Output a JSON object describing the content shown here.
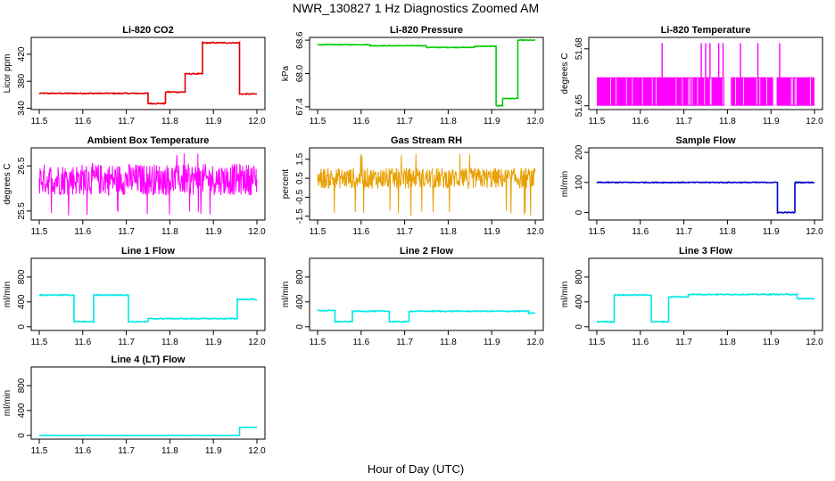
{
  "figure": {
    "title": "NWR_130827  1 Hz Diagnostics Zoomed AM",
    "xlabel": "Hour of Day (UTC)"
  },
  "chart_data": [
    {
      "type": "line",
      "title": "Li-820 CO2",
      "ylabel": "Licor ppm",
      "color": "#dd0000",
      "xlim": [
        11.5,
        12.0
      ],
      "ylim": [
        338,
        445
      ],
      "yticks": [
        340,
        380,
        420
      ],
      "ytick_labels": [
        "340",
        "380",
        "420"
      ],
      "noise": 0.8,
      "segments": [
        [
          11.5,
          11.75,
          362
        ],
        [
          11.75,
          11.79,
          347
        ],
        [
          11.79,
          11.835,
          364
        ],
        [
          11.835,
          11.875,
          391
        ],
        [
          11.875,
          11.96,
          437
        ],
        [
          11.96,
          12.0,
          361
        ]
      ]
    },
    {
      "type": "line",
      "title": "Li-820 Pressure",
      "ylabel": "kPa",
      "color": "#00cc00",
      "xlim": [
        11.5,
        12.0
      ],
      "ylim": [
        67.35,
        68.65
      ],
      "yticks": [
        67.4,
        68.0,
        68.6
      ],
      "ytick_labels": [
        "67.4",
        "68.0",
        "68.6"
      ],
      "noise": 0.006,
      "segments": [
        [
          11.5,
          11.62,
          68.52
        ],
        [
          11.62,
          11.75,
          68.5
        ],
        [
          11.75,
          11.86,
          68.47
        ],
        [
          11.86,
          11.91,
          68.49
        ],
        [
          11.91,
          11.925,
          67.42
        ],
        [
          11.925,
          11.96,
          67.55
        ],
        [
          11.96,
          12.0,
          68.6
        ]
      ]
    },
    {
      "type": "band",
      "title": "Li-820 Temperature",
      "ylabel": "degrees C",
      "color": "#ff00ff",
      "xlim": [
        11.5,
        12.0
      ],
      "ylim": [
        51.648,
        51.686
      ],
      "yticks": [
        51.65,
        51.68
      ],
      "ytick_labels": [
        "51.65",
        "51.68"
      ],
      "band": [
        51.65,
        51.665
      ],
      "spikes": [
        11.65,
        11.74,
        11.75,
        11.76,
        11.78,
        11.79,
        11.83,
        11.87,
        11.92
      ],
      "spike_top": 51.683,
      "gaps": [
        [
          11.793,
          11.808
        ],
        [
          11.905,
          11.913
        ]
      ]
    },
    {
      "type": "noise",
      "title": "Ambient Box Temperature",
      "ylabel": "degrees C",
      "color": "#ff00ff",
      "xlim": [
        11.5,
        12.0
      ],
      "ylim": [
        25.3,
        26.9
      ],
      "yticks": [
        25.5,
        26.5
      ],
      "ytick_labels": [
        "25.5",
        "26.5"
      ],
      "center": 26.2,
      "half_width": 0.35,
      "extreme_low": 25.4,
      "extreme_high": 26.8
    },
    {
      "type": "noise",
      "title": "Gas Stream RH",
      "ylabel": "percent",
      "color": "#e8a000",
      "xlim": [
        11.5,
        12.0
      ],
      "ylim": [
        -1.7,
        2.1
      ],
      "yticks": [
        -1.5,
        -0.5,
        0.5,
        1.5
      ],
      "ytick_labels": [
        "-1.5",
        "-0.5",
        "0.5",
        "1.5"
      ],
      "center": 0.5,
      "half_width": 0.55,
      "extreme_low": -1.5,
      "extreme_high": 1.8
    },
    {
      "type": "line",
      "title": "Sample Flow",
      "ylabel": "ml/min",
      "color": "#0000cc",
      "xlim": [
        11.5,
        12.0
      ],
      "ylim": [
        -25,
        215
      ],
      "yticks": [
        0,
        100,
        200
      ],
      "ytick_labels": [
        "0",
        "100",
        "200"
      ],
      "noise": 1.5,
      "segments": [
        [
          11.5,
          11.915,
          100
        ],
        [
          11.915,
          11.955,
          0
        ],
        [
          11.955,
          12.0,
          100
        ]
      ]
    },
    {
      "type": "line",
      "title": "Line 1 Flow",
      "ylabel": "ml/min",
      "color": "#00e8e8",
      "xlim": [
        11.5,
        12.0
      ],
      "ylim": [
        -60,
        1100
      ],
      "yticks": [
        0,
        400,
        800
      ],
      "ytick_labels": [
        "0",
        "400",
        "800"
      ],
      "noise": 8,
      "segments": [
        [
          11.5,
          11.58,
          510
        ],
        [
          11.58,
          11.625,
          80
        ],
        [
          11.625,
          11.705,
          510
        ],
        [
          11.705,
          11.75,
          80
        ],
        [
          11.75,
          11.955,
          130
        ],
        [
          11.955,
          12.0,
          440
        ]
      ]
    },
    {
      "type": "line",
      "title": "Line 2 Flow",
      "ylabel": "ml/min",
      "color": "#00e8e8",
      "xlim": [
        11.5,
        12.0
      ],
      "ylim": [
        -60,
        1100
      ],
      "yticks": [
        0,
        400,
        800
      ],
      "ytick_labels": [
        "0",
        "400",
        "800"
      ],
      "noise": 8,
      "segments": [
        [
          11.5,
          11.54,
          260
        ],
        [
          11.54,
          11.58,
          80
        ],
        [
          11.58,
          11.665,
          250
        ],
        [
          11.665,
          11.71,
          80
        ],
        [
          11.71,
          11.985,
          250
        ],
        [
          11.985,
          12.0,
          220
        ]
      ]
    },
    {
      "type": "line",
      "title": "Line 3 Flow",
      "ylabel": "ml/min",
      "color": "#00e8e8",
      "xlim": [
        11.5,
        12.0
      ],
      "ylim": [
        -60,
        1100
      ],
      "yticks": [
        0,
        400,
        800
      ],
      "ytick_labels": [
        "0",
        "400",
        "800"
      ],
      "noise": 8,
      "segments": [
        [
          11.5,
          11.54,
          80
        ],
        [
          11.54,
          11.625,
          510
        ],
        [
          11.625,
          11.665,
          80
        ],
        [
          11.665,
          11.71,
          480
        ],
        [
          11.71,
          11.96,
          520
        ],
        [
          11.96,
          12.0,
          450
        ]
      ]
    },
    {
      "type": "line",
      "title": "Line 4 (LT) Flow",
      "ylabel": "ml/min",
      "color": "#00e8e8",
      "xlim": [
        11.5,
        12.0
      ],
      "ylim": [
        -60,
        1100
      ],
      "yticks": [
        0,
        400,
        800
      ],
      "ytick_labels": [
        "0",
        "400",
        "800"
      ],
      "noise": 2,
      "segments": [
        [
          11.5,
          11.96,
          0
        ],
        [
          11.96,
          12.0,
          130
        ]
      ]
    }
  ],
  "xticks": [
    11.5,
    11.6,
    11.7,
    11.8,
    11.9,
    12.0
  ],
  "xtick_labels": [
    "11.5",
    "11.6",
    "11.7",
    "11.8",
    "11.9",
    "12.0"
  ]
}
